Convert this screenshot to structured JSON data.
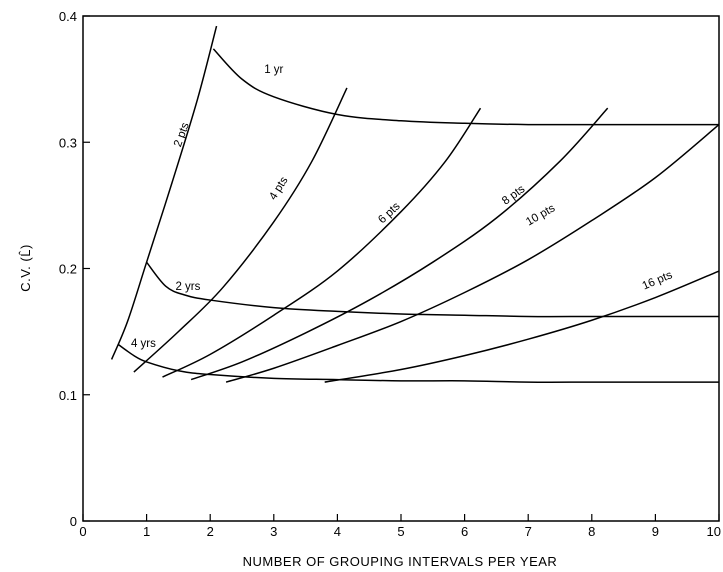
{
  "chart_data": {
    "type": "line",
    "xlabel": "NUMBER OF GROUPING INTERVALS PER YEAR",
    "ylabel": "C.V. (L̂)",
    "xlim": [
      0,
      10
    ],
    "ylim": [
      0,
      0.4
    ],
    "x_ticks": [
      "0",
      "1",
      "2",
      "3",
      "4",
      "5",
      "6",
      "7",
      "8",
      "9",
      "10"
    ],
    "y_ticks": [
      "0",
      "0.1",
      "0.2",
      "0.3",
      "0.4"
    ],
    "grid": false,
    "series": [
      {
        "name": "1 yr",
        "group": "duration",
        "x": [
          2.05,
          2.5,
          3,
          4,
          5,
          6,
          7,
          8,
          9,
          10
        ],
        "y": [
          0.374,
          0.35,
          0.336,
          0.322,
          0.317,
          0.315,
          0.314,
          0.314,
          0.314,
          0.314
        ]
      },
      {
        "name": "2 yrs",
        "group": "duration",
        "x": [
          1.0,
          1.3,
          1.6,
          2,
          3,
          4,
          5,
          6,
          7,
          8,
          9,
          10
        ],
        "y": [
          0.205,
          0.186,
          0.179,
          0.175,
          0.169,
          0.166,
          0.164,
          0.163,
          0.162,
          0.162,
          0.162,
          0.162
        ]
      },
      {
        "name": "4 yrs",
        "group": "duration",
        "x": [
          0.55,
          0.8,
          1,
          1.5,
          2,
          3,
          4,
          5,
          6,
          7,
          8,
          9,
          10
        ],
        "y": [
          0.14,
          0.131,
          0.126,
          0.119,
          0.116,
          0.113,
          0.112,
          0.111,
          0.111,
          0.11,
          0.11,
          0.11,
          0.11
        ]
      },
      {
        "name": "2 pts",
        "group": "points",
        "x": [
          0.45,
          0.7,
          1.0,
          1.4,
          1.8,
          2.1
        ],
        "y": [
          0.128,
          0.158,
          0.205,
          0.268,
          0.334,
          0.392
        ]
      },
      {
        "name": "4 pts",
        "group": "points",
        "x": [
          0.8,
          1.5,
          2.2,
          3.0,
          3.6,
          4.15
        ],
        "y": [
          0.118,
          0.15,
          0.185,
          0.237,
          0.285,
          0.343
        ]
      },
      {
        "name": "6 pts",
        "group": "points",
        "x": [
          1.25,
          2.0,
          3.0,
          4.0,
          5.0,
          5.7,
          6.25
        ],
        "y": [
          0.114,
          0.132,
          0.163,
          0.198,
          0.245,
          0.285,
          0.327
        ]
      },
      {
        "name": "8 pts",
        "group": "points",
        "x": [
          1.7,
          2.5,
          3.5,
          4.5,
          5.5,
          6.5,
          7.5,
          8.25
        ],
        "y": [
          0.112,
          0.126,
          0.149,
          0.175,
          0.205,
          0.24,
          0.285,
          0.327
        ]
      },
      {
        "name": "10 pts",
        "group": "points",
        "x": [
          2.25,
          3.0,
          4.0,
          5.0,
          6.0,
          7.0,
          8.0,
          9.0,
          10.0
        ],
        "y": [
          0.11,
          0.121,
          0.139,
          0.158,
          0.181,
          0.207,
          0.238,
          0.272,
          0.314
        ]
      },
      {
        "name": "16 pts",
        "group": "points",
        "x": [
          3.8,
          5.0,
          6.0,
          7.0,
          8.0,
          9.0,
          10.0
        ],
        "y": [
          0.11,
          0.12,
          0.131,
          0.144,
          0.159,
          0.177,
          0.198
        ]
      }
    ],
    "annotations": [
      {
        "text": "1 yr",
        "x": 3.0,
        "y": 0.355,
        "rotate": 0
      },
      {
        "text": "2 yrs",
        "x": 1.65,
        "y": 0.183,
        "rotate": 0
      },
      {
        "text": "4 yrs",
        "x": 0.95,
        "y": 0.138,
        "rotate": 0
      },
      {
        "text": "2 pts",
        "x": 1.6,
        "y": 0.305,
        "rotate": -70
      },
      {
        "text": "4 pts",
        "x": 3.12,
        "y": 0.262,
        "rotate": -58
      },
      {
        "text": "6 pts",
        "x": 4.85,
        "y": 0.242,
        "rotate": -43
      },
      {
        "text": "8 pts",
        "x": 6.8,
        "y": 0.256,
        "rotate": -36
      },
      {
        "text": "10 pts",
        "x": 7.22,
        "y": 0.24,
        "rotate": -30
      },
      {
        "text": "16 pts",
        "x": 9.05,
        "y": 0.188,
        "rotate": -23
      }
    ]
  }
}
